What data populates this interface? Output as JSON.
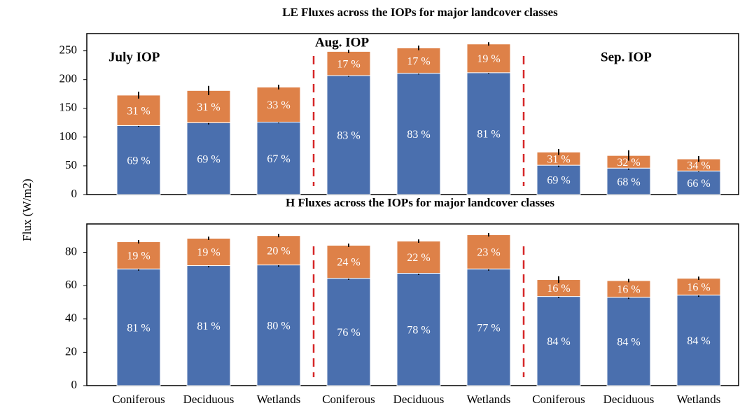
{
  "chart_data": [
    {
      "type": "stacked_bar",
      "title": "LE Fluxes across the IOPs for major landcover classes",
      "ylabel": "Flux (W/m2)",
      "annotations": [
        "July IOP",
        "Aug. IOP",
        "Sep. IOP"
      ],
      "ylim": [
        0,
        280
      ],
      "yticks": [
        0,
        50,
        100,
        150,
        200,
        250
      ],
      "series": [
        {
          "color": "#4a6fae",
          "values": [
            120,
            125,
            126,
            207,
            211,
            212,
            51,
            46,
            41
          ],
          "errors": [
            2,
            3,
            2,
            2,
            2,
            2,
            3,
            3,
            2
          ],
          "labels": [
            "69 %",
            "69 %",
            "67 %",
            "83 %",
            "83 %",
            "81 %",
            "69 %",
            "68 %",
            "66 %"
          ]
        },
        {
          "color": "#de8148",
          "values": [
            53,
            56,
            61,
            42,
            44,
            50,
            23,
            22,
            21
          ],
          "errors": [
            6,
            8,
            4,
            3,
            4,
            3,
            5,
            9,
            5
          ],
          "labels": [
            "31 %",
            "31 %",
            "33 %",
            "17 %",
            "17 %",
            "19 %",
            "31 %",
            "32 %",
            "34 %"
          ]
        }
      ]
    },
    {
      "type": "stacked_bar",
      "title": "H Fluxes across the IOPs for major landcover classes",
      "categories": [
        "Coniferous",
        "Deciduous",
        "Wetlands",
        "Coniferous",
        "Deciduous",
        "Wetlands",
        "Coniferous",
        "Deciduous",
        "Wetlands"
      ],
      "ylim": [
        0,
        97
      ],
      "yticks": [
        0,
        20,
        40,
        60,
        80
      ],
      "series": [
        {
          "color": "#4a6fae",
          "values": [
            70,
            72,
            72.4,
            64.4,
            67.4,
            70,
            53.5,
            53,
            54.3
          ],
          "errors": [
            1,
            1,
            1,
            1,
            1,
            1,
            1,
            1,
            1
          ],
          "labels": [
            "81 %",
            "81 %",
            "80 %",
            "76 %",
            "78 %",
            "77 %",
            "84 %",
            "84 %",
            "84 %"
          ]
        },
        {
          "color": "#de8148",
          "values": [
            16.3,
            16.4,
            17.6,
            19.8,
            19.3,
            20.5,
            10.1,
            10,
            10.1
          ],
          "errors": [
            1,
            1,
            1,
            1,
            1,
            1,
            2,
            1,
            1
          ],
          "labels": [
            "19 %",
            "19 %",
            "20 %",
            "24 %",
            "22 %",
            "23 %",
            "16 %",
            "16 %",
            "16 %"
          ]
        }
      ]
    }
  ]
}
